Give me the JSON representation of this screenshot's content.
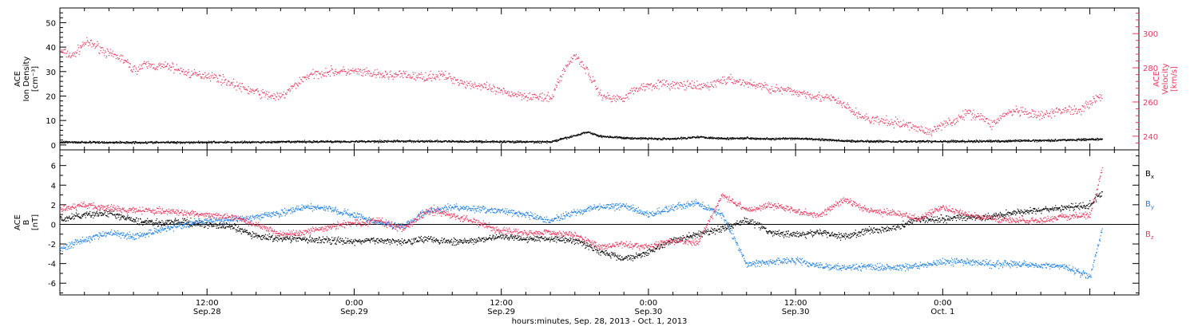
{
  "colors": {
    "axis": "#000000",
    "velocity": "#e8395f",
    "density": "#000000",
    "bx": "#000000",
    "by": "#1f7fe0",
    "bz": "#e8395f",
    "background": "#ffffff"
  },
  "chart_data": [
    {
      "type": "scatter",
      "panel": "top",
      "ylabel_left": [
        "ACE",
        "Ion Density",
        "[cm⁻³]"
      ],
      "ylabel_right": [
        "ACE",
        "Velocity",
        "[km/s]"
      ],
      "yticks_left": [
        "0",
        "10",
        "20",
        "30",
        "40",
        "50"
      ],
      "yticks_right": [
        "240",
        "260",
        "280",
        "300"
      ],
      "ylim_left": [
        -2,
        56
      ],
      "ylim_right": [
        232,
        315
      ],
      "xlim_hours": [
        0,
        88
      ],
      "series": [
        {
          "key": "velocity",
          "axis": "right",
          "color": "#e8395f",
          "x_hours": [
            0,
            1,
            2,
            3,
            4,
            5,
            6,
            7,
            8,
            9,
            10,
            11,
            12,
            13,
            14,
            15,
            16,
            17,
            18,
            19,
            20,
            21,
            22,
            23,
            24,
            25,
            26,
            27,
            28,
            29,
            30,
            31,
            32,
            33,
            34,
            35,
            36,
            37,
            38,
            39,
            40,
            41,
            42,
            43,
            44,
            45,
            46,
            47,
            48,
            49,
            50,
            51,
            52,
            53,
            54,
            55,
            56,
            57,
            58,
            59,
            60,
            61,
            62,
            63,
            64,
            65,
            66,
            67,
            68,
            69,
            70,
            71,
            72,
            73,
            74,
            75,
            76,
            77,
            78,
            79,
            80,
            81,
            82,
            83,
            84,
            85
          ],
          "values": [
            290,
            287,
            295,
            293,
            288,
            286,
            279,
            282,
            281,
            281,
            278,
            276,
            276,
            274,
            271,
            268,
            266,
            264,
            263,
            269,
            275,
            277,
            278,
            278,
            278,
            277,
            276,
            276,
            276,
            275,
            275,
            276,
            274,
            271,
            270,
            268,
            266,
            265,
            264,
            263,
            262,
            278,
            288,
            278,
            265,
            262,
            263,
            268,
            270,
            271,
            270,
            270,
            269,
            270,
            273,
            273,
            271,
            270,
            268,
            267,
            266,
            265,
            263,
            262,
            258,
            253,
            250,
            249,
            248,
            247,
            245,
            242,
            248,
            249,
            254,
            252,
            247,
            253,
            255,
            253,
            252,
            254,
            256,
            255,
            260,
            264
          ]
        },
        {
          "key": "density",
          "axis": "left",
          "color": "#000000",
          "x_hours": [
            0,
            4,
            8,
            12,
            16,
            20,
            24,
            28,
            32,
            36,
            40,
            42,
            43,
            44,
            46,
            48,
            50,
            52,
            54,
            56,
            58,
            60,
            62,
            64,
            68,
            72,
            76,
            80,
            84,
            85
          ],
          "values": [
            1.3,
            1.2,
            1.2,
            1.3,
            1.3,
            1.5,
            1.6,
            1.7,
            1.6,
            1.5,
            1.4,
            4.0,
            5.5,
            3.8,
            3.0,
            2.8,
            2.6,
            3.5,
            2.8,
            3.0,
            2.6,
            2.8,
            2.4,
            1.8,
            1.6,
            1.6,
            1.7,
            2.0,
            2.4,
            2.6
          ]
        }
      ]
    },
    {
      "type": "scatter",
      "panel": "bottom",
      "ylabel_left": [
        "ACE",
        "B",
        "[nT]"
      ],
      "yticks_left": [
        "-6",
        "-4",
        "-2",
        "0",
        "2",
        "4",
        "6"
      ],
      "ylim_left": [
        -7.2,
        7.6
      ],
      "legend": [
        "Bx",
        "By",
        "Bz"
      ],
      "legend_placement": "right",
      "series": [
        {
          "key": "bx",
          "name": "Bx",
          "color": "#000000",
          "x_hours": [
            0,
            2,
            4,
            6,
            8,
            10,
            12,
            14,
            16,
            18,
            20,
            22,
            24,
            26,
            28,
            30,
            32,
            34,
            36,
            38,
            40,
            42,
            44,
            46,
            48,
            50,
            52,
            54,
            56,
            58,
            60,
            62,
            64,
            66,
            68,
            70,
            72,
            74,
            76,
            78,
            80,
            82,
            84,
            85
          ],
          "values": [
            0.5,
            1.0,
            1.2,
            0.4,
            0.2,
            0.3,
            0.0,
            -0.2,
            -1.2,
            -1.4,
            -1.5,
            -1.6,
            -1.7,
            -1.6,
            -1.7,
            -1.4,
            -1.8,
            -1.6,
            -1.2,
            -1.4,
            -1.4,
            -1.6,
            -2.7,
            -3.5,
            -2.8,
            -1.6,
            -1.0,
            -0.4,
            0.5,
            -0.8,
            -1.0,
            -0.8,
            -1.2,
            -0.6,
            -0.3,
            0.6,
            0.6,
            0.8,
            0.8,
            1.3,
            1.5,
            1.7,
            2.0,
            3.4
          ]
        },
        {
          "key": "by",
          "name": "By",
          "color": "#1f7fe0",
          "x_hours": [
            0,
            2,
            4,
            6,
            8,
            10,
            12,
            14,
            16,
            18,
            20,
            22,
            24,
            26,
            28,
            30,
            32,
            34,
            36,
            38,
            40,
            42,
            44,
            46,
            48,
            50,
            52,
            54,
            56,
            58,
            60,
            62,
            64,
            66,
            68,
            70,
            72,
            74,
            76,
            78,
            80,
            82,
            84,
            85
          ],
          "values": [
            -2.5,
            -1.5,
            -0.8,
            -1.2,
            -0.6,
            0.0,
            0.4,
            0.5,
            0.8,
            1.2,
            1.8,
            1.6,
            1.0,
            0.2,
            -0.2,
            1.5,
            1.8,
            1.6,
            1.4,
            1.0,
            0.4,
            1.3,
            1.8,
            2.0,
            1.0,
            1.8,
            2.2,
            1.0,
            -4.0,
            -3.8,
            -3.6,
            -4.2,
            -4.4,
            -4.3,
            -4.4,
            -4.2,
            -3.8,
            -3.8,
            -4.0,
            -4.0,
            -4.1,
            -4.3,
            -5.3,
            -0.4
          ]
        },
        {
          "key": "bz",
          "name": "Bz",
          "color": "#e8395f",
          "x_hours": [
            0,
            2,
            4,
            6,
            8,
            10,
            12,
            14,
            16,
            18,
            20,
            22,
            24,
            26,
            28,
            30,
            32,
            34,
            36,
            38,
            40,
            42,
            44,
            46,
            48,
            50,
            52,
            54,
            56,
            58,
            60,
            62,
            64,
            66,
            68,
            70,
            72,
            74,
            76,
            78,
            80,
            82,
            84,
            85
          ],
          "values": [
            1.5,
            2.0,
            1.7,
            1.5,
            1.4,
            1.2,
            1.0,
            0.8,
            0.0,
            -1.0,
            -0.8,
            -0.2,
            0.2,
            0.4,
            -0.4,
            1.5,
            1.0,
            0.2,
            -0.6,
            -0.8,
            -0.8,
            -1.0,
            -2.3,
            -2.0,
            -2.2,
            -1.6,
            -1.8,
            3.0,
            1.5,
            2.0,
            1.4,
            1.0,
            2.6,
            1.4,
            1.2,
            0.6,
            1.8,
            1.0,
            0.6,
            0.5,
            0.4,
            0.8,
            1.0,
            5.8
          ]
        }
      ]
    }
  ],
  "x_axis": {
    "range_hours": [
      0,
      88
    ],
    "major_ticks": [
      {
        "hours": 12,
        "time": "12:00",
        "date": "Sep.28"
      },
      {
        "hours": 24,
        "time": "0:00",
        "date": "Sep.29"
      },
      {
        "hours": 36,
        "time": "12:00",
        "date": "Sep.29"
      },
      {
        "hours": 48,
        "time": "0:00",
        "date": "Sep.30"
      },
      {
        "hours": 60,
        "time": "12:00",
        "date": "Sep.30"
      },
      {
        "hours": 72,
        "time": "0:00",
        "date": "Oct. 1"
      }
    ],
    "label": "hours:minutes, Sep. 28, 2013 - Oct.  1, 2013"
  }
}
